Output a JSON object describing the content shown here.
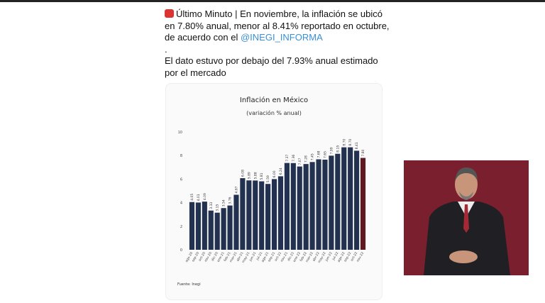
{
  "tweet": {
    "text": "Último Minuto | En noviembre, la inflación se ubicó en 7.80% anual, menor al 8.41% reportado en octubre, de acuerdo con el",
    "mention": "@INEGI_INFORMA",
    "separator": ".",
    "text_2": "El dato estuvo por debajo del 7.93% anual estimado por el mercado"
  },
  "chart_data": {
    "type": "bar",
    "title": "Inflación en México",
    "subtitle": "(variación % anual)",
    "source": "Fuente: Inegi",
    "categories": [
      "ago-20",
      "sep-20",
      "oct-20",
      "nov-20",
      "dic-20",
      "ene-21",
      "feb-21",
      "mar-21",
      "abr-21",
      "may-21",
      "jun-21",
      "jul-21",
      "ago-21",
      "sep-21",
      "oct-21",
      "nov-21",
      "dic-21",
      "ene-22",
      "feb-22",
      "mar-22",
      "abr-22",
      "may-22",
      "jun-22",
      "jul-22",
      "ago-22",
      "sep-22",
      "oct-22",
      "nov-22"
    ],
    "values": [
      4.05,
      4.01,
      4.09,
      3.33,
      3.15,
      3.54,
      3.76,
      4.67,
      6.08,
      5.89,
      5.88,
      5.81,
      5.59,
      6,
      6.24,
      7.37,
      7.36,
      7.07,
      7.28,
      7.45,
      7.68,
      7.65,
      7.99,
      8.15,
      8.7,
      8.7,
      8.41,
      7.8
    ],
    "value_labels": [
      "4.05",
      "4.01",
      "4.09",
      "3.33",
      "3.15",
      "3.54",
      "3.76",
      "4.67",
      "6.08",
      "5.89",
      "5.88",
      "5.81",
      "5.59",
      "6.00",
      "6.24",
      "7.37",
      "7.36",
      "7.07",
      "7.28",
      "7.45",
      "7.68",
      "7.65",
      "7.99",
      "8.15",
      "8.70",
      "8.70",
      "8.41",
      "7.80"
    ],
    "colors": [
      "#22314f",
      "#22314f",
      "#22314f",
      "#22314f",
      "#22314f",
      "#22314f",
      "#22314f",
      "#22314f",
      "#22314f",
      "#22314f",
      "#22314f",
      "#22314f",
      "#22314f",
      "#22314f",
      "#22314f",
      "#22314f",
      "#22314f",
      "#22314f",
      "#22314f",
      "#22314f",
      "#22314f",
      "#22314f",
      "#22314f",
      "#22314f",
      "#22314f",
      "#22314f",
      "#22314f",
      "#5e1a22"
    ],
    "ylim": [
      0,
      10
    ],
    "yticks": [
      0,
      2,
      4,
      6,
      8,
      10
    ],
    "grid": false
  }
}
